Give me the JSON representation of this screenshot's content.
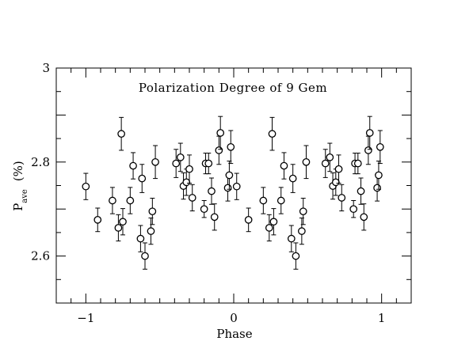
{
  "chart_data": {
    "type": "scatter",
    "title": "Polarization Degree of 9 Gem",
    "xlabel": "Phase",
    "ylabel_main": "P",
    "ylabel_sub": "ave",
    "ylabel_unit": "(%)",
    "xlim": [
      -1.2,
      1.2
    ],
    "ylim": [
      2.5,
      3.0
    ],
    "x_ticks": [
      -1,
      0,
      1
    ],
    "x_tick_labels": [
      "−1",
      "0",
      "1"
    ],
    "y_ticks": [
      2.6,
      2.8,
      3.0
    ],
    "y_tick_labels": [
      "2.6",
      "2.8",
      "3"
    ],
    "x_minor_step": 0.1,
    "y_minor_step": 0.05,
    "grid": false,
    "series": [
      {
        "points": [
          {
            "x": -1.0,
            "y": 2.748,
            "err": 0.028
          },
          {
            "x": -0.92,
            "y": 2.677,
            "err": 0.025
          },
          {
            "x": -0.82,
            "y": 2.718,
            "err": 0.028
          },
          {
            "x": -0.78,
            "y": 2.66,
            "err": 0.028
          },
          {
            "x": -0.76,
            "y": 2.86,
            "err": 0.035
          },
          {
            "x": -0.75,
            "y": 2.673,
            "err": 0.028
          },
          {
            "x": -0.7,
            "y": 2.718,
            "err": 0.028
          },
          {
            "x": -0.68,
            "y": 2.792,
            "err": 0.028
          },
          {
            "x": -0.63,
            "y": 2.637,
            "err": 0.028
          },
          {
            "x": -0.62,
            "y": 2.765,
            "err": 0.03
          },
          {
            "x": -0.6,
            "y": 2.6,
            "err": 0.028
          },
          {
            "x": -0.56,
            "y": 2.653,
            "err": 0.028
          },
          {
            "x": -0.55,
            "y": 2.695,
            "err": 0.028
          },
          {
            "x": -0.53,
            "y": 2.8,
            "err": 0.035
          },
          {
            "x": -0.39,
            "y": 2.797,
            "err": 0.03
          },
          {
            "x": -0.36,
            "y": 2.81,
            "err": 0.03
          },
          {
            "x": -0.34,
            "y": 2.749,
            "err": 0.028
          },
          {
            "x": -0.32,
            "y": 2.757,
            "err": 0.028
          },
          {
            "x": -0.3,
            "y": 2.785,
            "err": 0.03
          },
          {
            "x": -0.28,
            "y": 2.724,
            "err": 0.028
          },
          {
            "x": -0.2,
            "y": 2.7,
            "err": 0.018
          },
          {
            "x": -0.19,
            "y": 2.797,
            "err": 0.022
          },
          {
            "x": -0.17,
            "y": 2.797,
            "err": 0.022
          },
          {
            "x": -0.15,
            "y": 2.738,
            "err": 0.028
          },
          {
            "x": -0.13,
            "y": 2.683,
            "err": 0.028
          },
          {
            "x": -0.1,
            "y": 2.825,
            "err": 0.03
          },
          {
            "x": -0.09,
            "y": 2.862,
            "err": 0.035
          },
          {
            "x": -0.04,
            "y": 2.745,
            "err": 0.028
          },
          {
            "x": -0.03,
            "y": 2.772,
            "err": 0.03
          },
          {
            "x": -0.02,
            "y": 2.832,
            "err": 0.035
          },
          {
            "x": 0.02,
            "y": 2.748,
            "err": 0.028
          },
          {
            "x": 0.1,
            "y": 2.677,
            "err": 0.025
          },
          {
            "x": 0.2,
            "y": 2.718,
            "err": 0.028
          },
          {
            "x": 0.24,
            "y": 2.66,
            "err": 0.028
          },
          {
            "x": 0.26,
            "y": 2.86,
            "err": 0.035
          },
          {
            "x": 0.27,
            "y": 2.673,
            "err": 0.028
          },
          {
            "x": 0.32,
            "y": 2.718,
            "err": 0.028
          },
          {
            "x": 0.34,
            "y": 2.792,
            "err": 0.028
          },
          {
            "x": 0.39,
            "y": 2.637,
            "err": 0.028
          },
          {
            "x": 0.4,
            "y": 2.765,
            "err": 0.03
          },
          {
            "x": 0.42,
            "y": 2.6,
            "err": 0.028
          },
          {
            "x": 0.46,
            "y": 2.653,
            "err": 0.028
          },
          {
            "x": 0.47,
            "y": 2.695,
            "err": 0.028
          },
          {
            "x": 0.49,
            "y": 2.8,
            "err": 0.035
          },
          {
            "x": 0.62,
            "y": 2.797,
            "err": 0.03
          },
          {
            "x": 0.65,
            "y": 2.81,
            "err": 0.03
          },
          {
            "x": 0.67,
            "y": 2.749,
            "err": 0.028
          },
          {
            "x": 0.69,
            "y": 2.757,
            "err": 0.028
          },
          {
            "x": 0.71,
            "y": 2.785,
            "err": 0.03
          },
          {
            "x": 0.73,
            "y": 2.724,
            "err": 0.028
          },
          {
            "x": 0.81,
            "y": 2.7,
            "err": 0.018
          },
          {
            "x": 0.82,
            "y": 2.797,
            "err": 0.022
          },
          {
            "x": 0.84,
            "y": 2.797,
            "err": 0.022
          },
          {
            "x": 0.86,
            "y": 2.738,
            "err": 0.028
          },
          {
            "x": 0.88,
            "y": 2.683,
            "err": 0.028
          },
          {
            "x": 0.91,
            "y": 2.825,
            "err": 0.03
          },
          {
            "x": 0.92,
            "y": 2.862,
            "err": 0.035
          },
          {
            "x": 0.97,
            "y": 2.745,
            "err": 0.028
          },
          {
            "x": 0.98,
            "y": 2.772,
            "err": 0.03
          },
          {
            "x": 0.99,
            "y": 2.832,
            "err": 0.035
          }
        ]
      }
    ]
  }
}
